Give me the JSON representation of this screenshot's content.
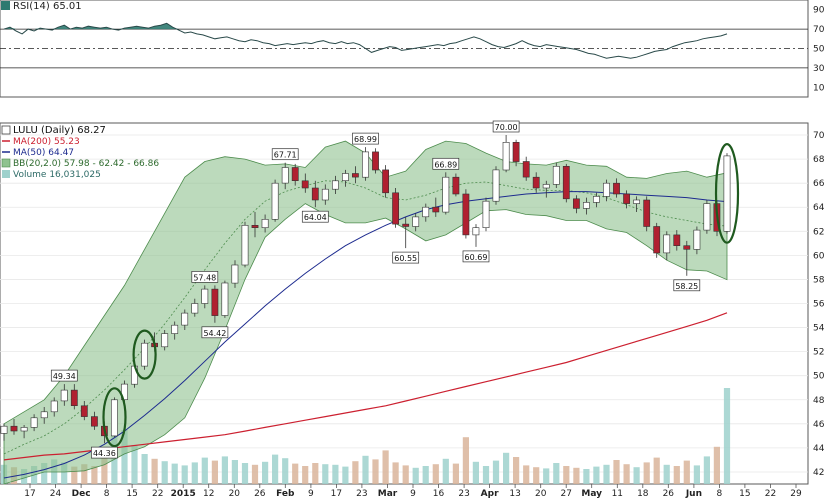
{
  "colors": {
    "bb_fill": "#8fc28f",
    "bb_line": "#4d8c4d",
    "ma50": "#1d2b8f",
    "ma200": "#cc2030",
    "up_candle": "#ffffff",
    "down_candle": "#b02030",
    "rsi_line": "#2a4a4a",
    "rsi_fill": "#2d7a70",
    "volume_up": "#9ed1cc",
    "volume_down": "#d9b49a",
    "highlight_ellipse": "#1f5a1f"
  },
  "rsi_panel": {
    "label": "RSI(14) 65.01",
    "levels": [
      "90",
      "70",
      "50",
      "30",
      "10"
    ]
  },
  "legend": {
    "ticker": "LULU (Daily) 68.27",
    "ma200": "MA(200) 55.23",
    "ma50": "MA(50) 64.47",
    "bb": "BB(20,2.0) 57.98 - 62.42 - 66.86",
    "volume": "Volume 16,031,025"
  },
  "price_axis_labels": [
    "70",
    "68",
    "66",
    "64",
    "62",
    "60",
    "58",
    "56",
    "54",
    "52",
    "50",
    "48",
    "46",
    "44",
    "42"
  ],
  "x_axis_labels": [
    "17",
    "24",
    "Dec",
    "8",
    "15",
    "22",
    "2015",
    "12",
    "20",
    "26",
    "Feb",
    "9",
    "17",
    "23",
    "Mar",
    "9",
    "16",
    "23",
    "Apr",
    "13",
    "20",
    "27",
    "May",
    "11",
    "18",
    "26",
    "Jun",
    "8",
    "15",
    "22",
    "29"
  ],
  "annotations": [
    "49.34",
    "44.36",
    "57.48",
    "54.42",
    "67.71",
    "64.04",
    "68.99",
    "60.55",
    "66.89",
    "60.69",
    "70.00",
    "58.25"
  ],
  "chart_data": {
    "type": "candlestick",
    "symbol": "LULU",
    "interval": "Daily",
    "last_price": 68.27,
    "price_range": [
      41,
      71
    ],
    "rsi": {
      "period": 14,
      "last": 65.01,
      "range": [
        0,
        100
      ],
      "reference_levels": [
        70,
        50,
        30
      ],
      "values": [
        70,
        72,
        68,
        65,
        70,
        68,
        71,
        70,
        69,
        72,
        74,
        70,
        72,
        71,
        73,
        72,
        71,
        72,
        70,
        69,
        71,
        72,
        73,
        72,
        71,
        73,
        74,
        76,
        72,
        69,
        66,
        67,
        65,
        64,
        62,
        60,
        61,
        62,
        60,
        58,
        57,
        59,
        58,
        56,
        55,
        53,
        54,
        55,
        54,
        55,
        56,
        55,
        57,
        58,
        56,
        55,
        57,
        55,
        56,
        54,
        50,
        46,
        48,
        50,
        52,
        51,
        48,
        49,
        50,
        51,
        52,
        53,
        54,
        53,
        55,
        56,
        58,
        60,
        62,
        60,
        57,
        54,
        52,
        51,
        53,
        55,
        58,
        55,
        53,
        52,
        54,
        53,
        52,
        51,
        50,
        49,
        47,
        45,
        44,
        42,
        40,
        41,
        42,
        41,
        40,
        41,
        43,
        45,
        47,
        48,
        49,
        52,
        54,
        56,
        57,
        58,
        60,
        61,
        62,
        63,
        65.01
      ]
    },
    "series": [
      {
        "name": "MA(200)",
        "last": 55.23,
        "values": [
          43.0,
          43.2,
          43.4,
          43.5,
          43.7,
          43.9,
          44.1,
          44.3,
          44.5,
          44.7,
          44.9,
          45.1,
          45.4,
          45.7,
          46.0,
          46.3,
          46.6,
          46.9,
          47.2,
          47.5,
          47.9,
          48.3,
          48.7,
          49.1,
          49.5,
          49.9,
          50.3,
          50.7,
          51.1,
          51.6,
          52.1,
          52.6,
          53.1,
          53.6,
          54.1,
          54.6,
          55.23
        ]
      },
      {
        "name": "MA(50)",
        "last": 64.47,
        "values": [
          41.5,
          41.8,
          42.2,
          42.7,
          43.4,
          44.3,
          45.4,
          46.7,
          48.1,
          49.6,
          51.2,
          52.8,
          54.3,
          55.8,
          57.2,
          58.5,
          59.7,
          60.8,
          61.7,
          62.5,
          63.2,
          63.8,
          64.2,
          64.5,
          64.7,
          64.9,
          65.1,
          65.2,
          65.3,
          65.3,
          65.2,
          65.1,
          65.0,
          64.9,
          64.8,
          64.6,
          64.47
        ]
      },
      {
        "name": "BB(20,2.0)",
        "lower": 57.98,
        "middle": 62.42,
        "upper": 66.86,
        "upper_values": [
          46.0,
          47.0,
          48.0,
          50.0,
          52.5,
          55.0,
          57.5,
          60.5,
          63.5,
          66.5,
          67.8,
          68.2,
          68.0,
          67.5,
          67.6,
          67.3,
          69.0,
          69.5,
          68.5,
          66.5,
          67.0,
          68.8,
          69.5,
          69.3,
          68.5,
          67.8,
          67.6,
          67.5,
          67.9,
          67.5,
          67.4,
          66.5,
          66.4,
          66.8,
          67.0,
          66.5,
          66.86
        ],
        "middle_values": [
          43.5,
          44.3,
          45.0,
          46.0,
          47.3,
          48.8,
          50.5,
          52.3,
          54.3,
          56.5,
          58.8,
          61.0,
          63.0,
          64.5,
          65.3,
          65.8,
          66.2,
          66.1,
          65.6,
          64.8,
          64.6,
          65.0,
          65.6,
          66.0,
          66.1,
          65.8,
          65.5,
          65.4,
          65.4,
          65.2,
          64.8,
          64.2,
          63.6,
          63.2,
          62.9,
          62.6,
          62.42
        ],
        "lower_values": [
          41.0,
          41.5,
          42.0,
          42.0,
          42.1,
          42.6,
          43.5,
          44.1,
          45.1,
          46.5,
          49.8,
          53.8,
          58.0,
          61.5,
          63.0,
          64.3,
          63.4,
          62.7,
          62.7,
          63.1,
          62.2,
          61.2,
          61.7,
          62.7,
          63.7,
          63.8,
          63.4,
          63.3,
          62.9,
          62.9,
          62.2,
          61.9,
          60.8,
          59.6,
          58.8,
          58.7,
          57.98
        ]
      },
      {
        "name": "Volume",
        "last": 16031025
      }
    ],
    "candles": [
      [
        45.2,
        46.0,
        44.6,
        45.8
      ],
      [
        45.8,
        46.4,
        45.1,
        45.4
      ],
      [
        45.4,
        45.9,
        44.8,
        45.7
      ],
      [
        45.7,
        46.8,
        45.4,
        46.5
      ],
      [
        46.5,
        47.4,
        46.0,
        47.0
      ],
      [
        47.0,
        48.2,
        46.6,
        47.9
      ],
      [
        47.9,
        49.3,
        47.5,
        48.8
      ],
      [
        48.8,
        49.3,
        47.2,
        47.5
      ],
      [
        47.5,
        47.9,
        46.3,
        46.6
      ],
      [
        46.6,
        47.0,
        45.5,
        45.8
      ],
      [
        45.8,
        46.2,
        44.4,
        45.0
      ],
      [
        45.0,
        48.2,
        44.9,
        48.0
      ],
      [
        48.0,
        49.6,
        47.7,
        49.3
      ],
      [
        49.3,
        51.0,
        49.0,
        50.8
      ],
      [
        50.8,
        53.0,
        50.5,
        52.7
      ],
      [
        52.7,
        53.6,
        52.0,
        52.4
      ],
      [
        52.4,
        53.8,
        52.1,
        53.5
      ],
      [
        53.5,
        54.5,
        53.0,
        54.2
      ],
      [
        54.2,
        55.5,
        53.8,
        55.2
      ],
      [
        55.2,
        56.4,
        54.9,
        56.0
      ],
      [
        56.0,
        57.5,
        55.6,
        57.2
      ],
      [
        57.2,
        57.5,
        54.4,
        55.0
      ],
      [
        55.0,
        57.9,
        54.8,
        57.7
      ],
      [
        57.7,
        59.6,
        57.3,
        59.2
      ],
      [
        59.2,
        62.8,
        59.0,
        62.5
      ],
      [
        62.5,
        63.6,
        61.5,
        62.3
      ],
      [
        62.3,
        63.4,
        61.9,
        63.0
      ],
      [
        63.0,
        66.3,
        62.8,
        66.0
      ],
      [
        66.0,
        67.7,
        65.5,
        67.3
      ],
      [
        67.3,
        67.6,
        65.8,
        66.2
      ],
      [
        66.2,
        66.8,
        65.2,
        65.6
      ],
      [
        65.6,
        66.2,
        64.0,
        64.6
      ],
      [
        64.6,
        65.9,
        64.2,
        65.5
      ],
      [
        65.5,
        66.6,
        65.1,
        66.2
      ],
      [
        66.2,
        67.1,
        65.7,
        66.8
      ],
      [
        66.8,
        67.4,
        66.0,
        66.5
      ],
      [
        66.5,
        69.0,
        66.2,
        68.6
      ],
      [
        68.6,
        68.9,
        66.8,
        67.1
      ],
      [
        67.1,
        67.5,
        64.8,
        65.2
      ],
      [
        65.2,
        65.6,
        62.3,
        62.6
      ],
      [
        62.6,
        63.2,
        60.6,
        62.4
      ],
      [
        62.4,
        63.5,
        62.0,
        63.2
      ],
      [
        63.2,
        64.3,
        62.8,
        64.0
      ],
      [
        64.0,
        64.8,
        63.2,
        63.6
      ],
      [
        63.6,
        66.9,
        63.4,
        66.5
      ],
      [
        66.5,
        66.8,
        64.9,
        65.1
      ],
      [
        65.1,
        65.5,
        61.4,
        61.7
      ],
      [
        61.7,
        62.6,
        60.7,
        62.3
      ],
      [
        62.3,
        64.8,
        62.0,
        64.5
      ],
      [
        64.5,
        67.4,
        64.2,
        67.1
      ],
      [
        67.1,
        70.0,
        66.9,
        69.4
      ],
      [
        69.4,
        69.6,
        67.4,
        67.8
      ],
      [
        67.8,
        68.2,
        66.2,
        66.5
      ],
      [
        66.5,
        66.9,
        65.2,
        65.6
      ],
      [
        65.6,
        66.2,
        64.8,
        65.9
      ],
      [
        65.9,
        67.7,
        65.6,
        67.4
      ],
      [
        67.4,
        67.6,
        64.4,
        64.7
      ],
      [
        64.7,
        65.0,
        63.5,
        63.9
      ],
      [
        63.9,
        64.8,
        63.4,
        64.4
      ],
      [
        64.4,
        65.2,
        64.0,
        64.9
      ],
      [
        64.9,
        66.3,
        64.5,
        66.0
      ],
      [
        66.0,
        66.4,
        64.8,
        65.1
      ],
      [
        65.1,
        65.4,
        63.9,
        64.3
      ],
      [
        64.3,
        64.9,
        63.6,
        64.6
      ],
      [
        64.6,
        64.9,
        62.0,
        62.4
      ],
      [
        62.4,
        62.7,
        59.8,
        60.2
      ],
      [
        60.2,
        62.0,
        59.6,
        61.7
      ],
      [
        61.7,
        62.1,
        60.4,
        60.8
      ],
      [
        60.8,
        61.2,
        58.3,
        60.5
      ],
      [
        60.5,
        62.4,
        60.1,
        62.1
      ],
      [
        62.1,
        64.6,
        61.8,
        64.3
      ],
      [
        64.3,
        64.5,
        61.6,
        62.0
      ],
      [
        62.0,
        68.5,
        61.8,
        68.27
      ]
    ],
    "volume_range": [
      0,
      20000000
    ],
    "volume": [
      3.2,
      2.8,
      2.5,
      3.0,
      3.5,
      4.1,
      3.6,
      2.9,
      3.3,
      3.0,
      4.8,
      12.5,
      9.0,
      6.5,
      5.0,
      4.2,
      3.8,
      3.4,
      3.1,
      3.6,
      4.4,
      3.9,
      4.6,
      4.0,
      3.5,
      3.2,
      3.7,
      4.9,
      4.3,
      3.4,
      3.0,
      3.5,
      3.3,
      3.2,
      2.9,
      3.8,
      4.7,
      4.1,
      5.6,
      3.6,
      3.1,
      2.7,
      3.0,
      3.3,
      4.2,
      3.4,
      7.8,
      3.7,
      3.0,
      3.9,
      5.2,
      4.5,
      3.1,
      2.8,
      2.6,
      3.5,
      3.0,
      2.7,
      2.5,
      2.9,
      3.2,
      4.0,
      3.3,
      2.8,
      3.6,
      4.4,
      3.2,
      3.0,
      3.9,
      3.1,
      4.6,
      6.2,
      16.0
    ]
  }
}
